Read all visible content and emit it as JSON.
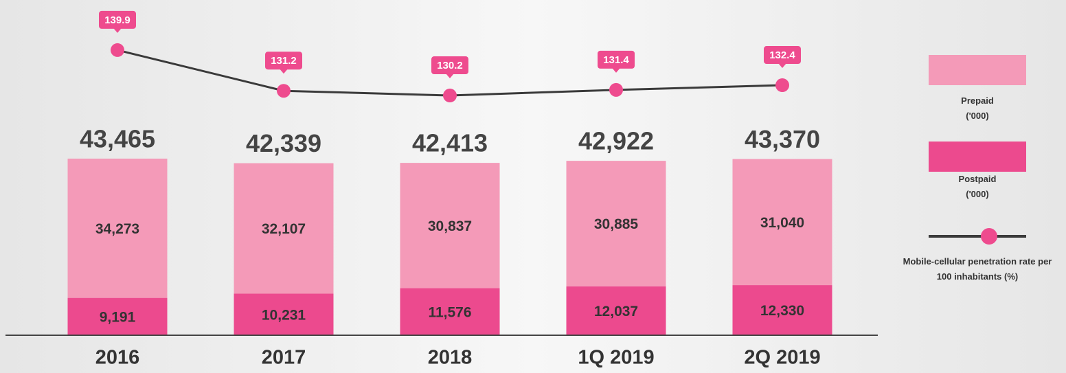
{
  "chart_data": {
    "type": "bar",
    "stacked": true,
    "categories": [
      "2016",
      "2017",
      "2018",
      "1Q 2019",
      "2Q 2019"
    ],
    "series": [
      {
        "name": "Postpaid ('000)",
        "color": "#ec4a8e",
        "values": [
          9191,
          10231,
          11576,
          12037,
          12330
        ],
        "value_labels": [
          "9,191",
          "10,231",
          "11,576",
          "12,037",
          "12,330"
        ]
      },
      {
        "name": "Prepaid ('000)",
        "color": "#f49ab8",
        "values": [
          34273,
          32107,
          30837,
          30885,
          31040
        ],
        "value_labels": [
          "34,273",
          "32,107",
          "30,837",
          "30,885",
          "31,040"
        ]
      },
      {
        "name": "Mobile-cellular penetration rate per 100 inhabitants (%)",
        "type": "line",
        "axis": "y2",
        "color": "#ee4b8e",
        "line_color": "#3a3a3a",
        "values": [
          139.9,
          131.2,
          130.2,
          131.4,
          132.4
        ]
      }
    ],
    "totals": {
      "values": [
        43465,
        42339,
        42413,
        42922,
        43370
      ],
      "value_labels": [
        "43,465",
        "42,339",
        "42,413",
        "42,922",
        "43,370"
      ]
    },
    "ylim": [
      0,
      82500
    ],
    "y2lim": [
      79,
      150.6
    ],
    "legend": "right"
  }
}
